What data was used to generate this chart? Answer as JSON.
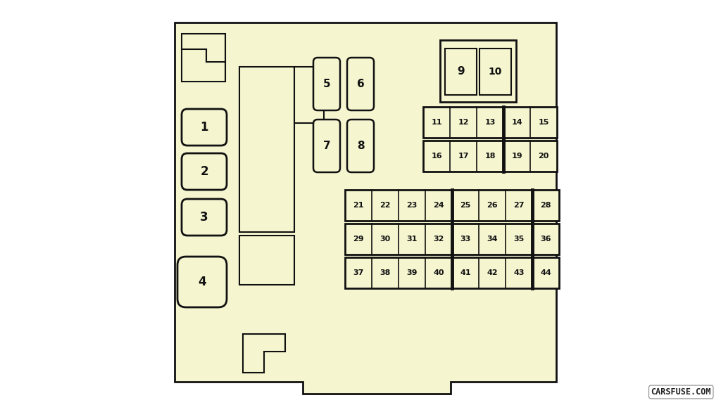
{
  "bg_color": "#f5f5d0",
  "outer_bg": "#ffffff",
  "line_color": "#111111",
  "text_color": "#111111",
  "watermark": "CARSFUSE.COM",
  "fig_w": 10.24,
  "fig_h": 5.76
}
